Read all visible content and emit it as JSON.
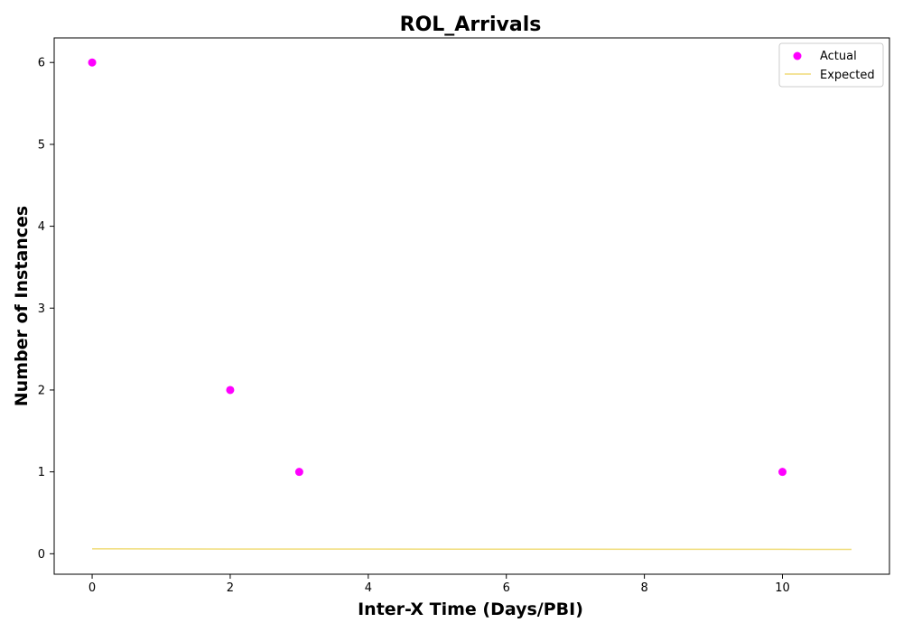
{
  "chart_data": {
    "type": "scatter",
    "title": "ROL_Arrivals",
    "xlabel": "Inter-X Time (Days/PBI)",
    "ylabel": "Number of Instances",
    "xlim": [
      -0.55,
      11.55
    ],
    "ylim": [
      -0.25,
      6.3
    ],
    "xticks": [
      0,
      2,
      4,
      6,
      8,
      10
    ],
    "yticks": [
      0,
      1,
      2,
      3,
      4,
      5,
      6
    ],
    "grid": false,
    "legend_position": "top-right",
    "series": [
      {
        "name": "Actual",
        "kind": "scatter",
        "color": "#ff00ff",
        "points": [
          {
            "x": 0,
            "y": 6
          },
          {
            "x": 2,
            "y": 2
          },
          {
            "x": 3,
            "y": 1
          },
          {
            "x": 10,
            "y": 1
          }
        ]
      },
      {
        "name": "Expected",
        "kind": "line",
        "color": "#f0dc78",
        "points": [
          {
            "x": 0,
            "y": 0.06
          },
          {
            "x": 2,
            "y": 0.058
          },
          {
            "x": 4,
            "y": 0.057
          },
          {
            "x": 6,
            "y": 0.056
          },
          {
            "x": 8,
            "y": 0.055
          },
          {
            "x": 10,
            "y": 0.054
          },
          {
            "x": 11,
            "y": 0.053
          }
        ]
      }
    ]
  }
}
